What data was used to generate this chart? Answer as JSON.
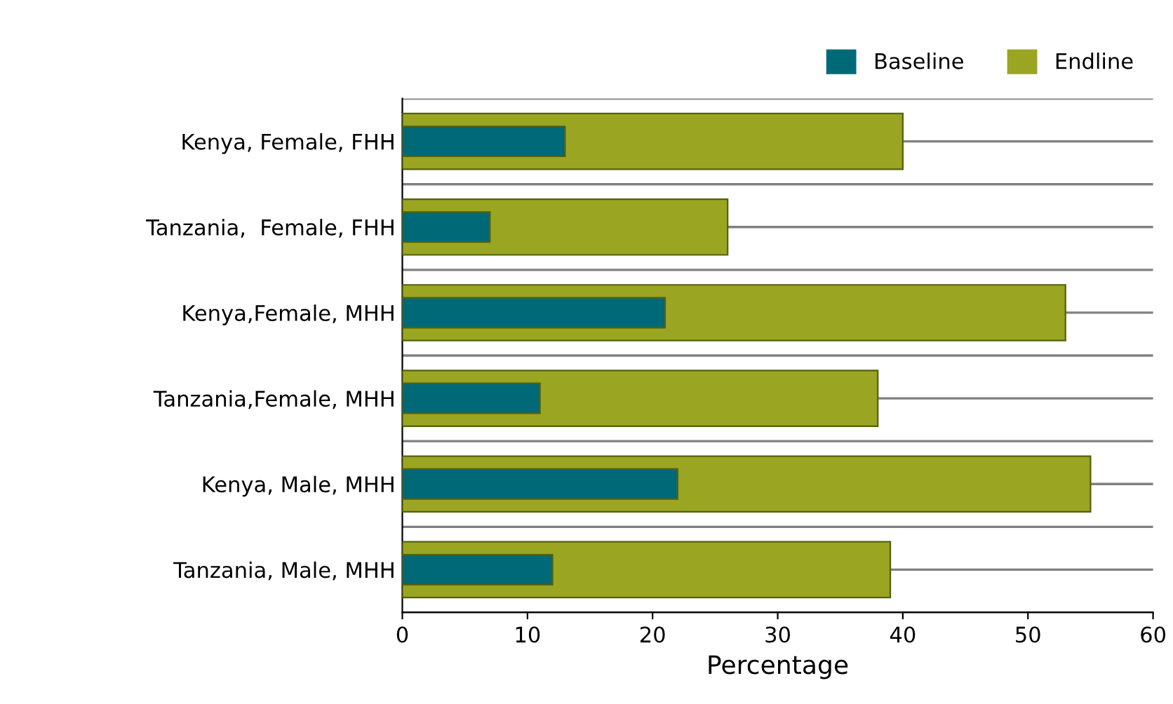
{
  "chart_data": {
    "type": "bar",
    "orientation": "horizontal",
    "xlabel": "Percentage",
    "categories": [
      "Kenya, Female, FHH",
      "Tanzania,  Female, FHH",
      "Kenya,Female, MHH",
      "Tanzania,Female, MHH",
      "Kenya, Male, MHH",
      "Tanzania, Male, MHH"
    ],
    "series": [
      {
        "name": "Baseline",
        "color": "#006978",
        "values": [
          13,
          7,
          21,
          11,
          22,
          12
        ]
      },
      {
        "name": "Endline",
        "color": "#9aa521",
        "values": [
          40,
          26,
          53,
          38,
          55,
          39
        ]
      }
    ],
    "xlim": [
      0,
      60
    ],
    "xticks": [
      0,
      10,
      20,
      30,
      40,
      50,
      60
    ],
    "grid": "y",
    "legend": "top right"
  }
}
